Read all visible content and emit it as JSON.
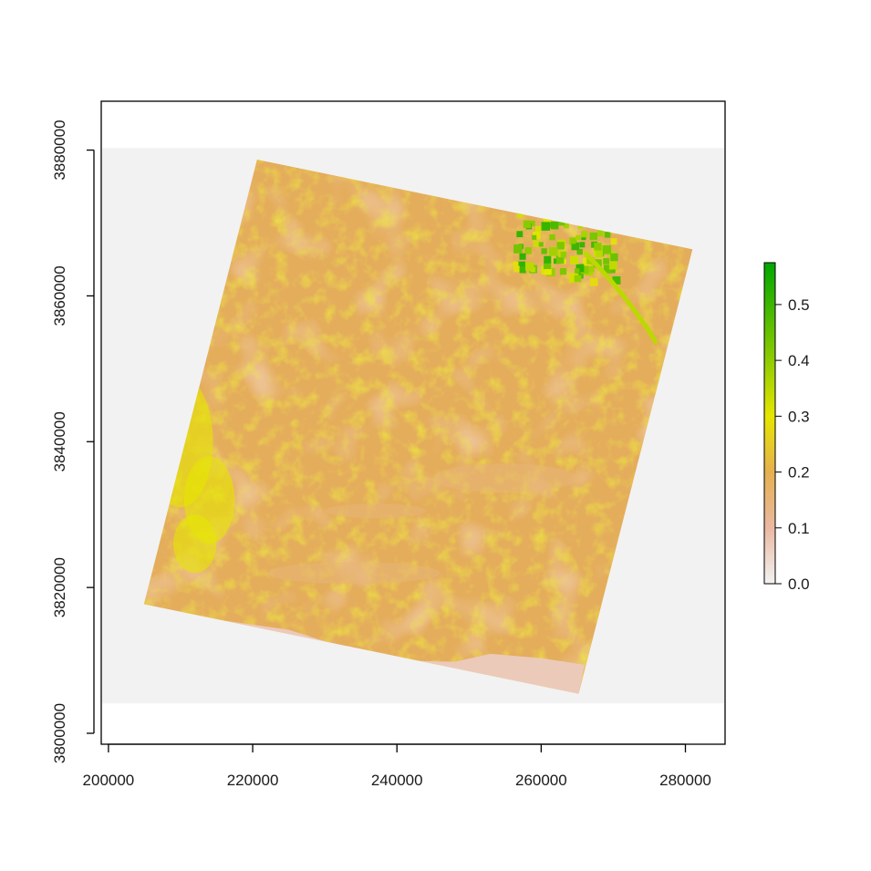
{
  "chart_data": {
    "type": "heatmap",
    "title": "",
    "xlabel": "",
    "ylabel": "",
    "xlim": [
      199000,
      285500
    ],
    "ylim": [
      3798500,
      3886700
    ],
    "x_ticks": [
      200000,
      220000,
      240000,
      260000,
      280000
    ],
    "y_ticks": [
      3800000,
      3820000,
      3840000,
      3860000,
      3880000
    ],
    "x_tick_labels": [
      "200000",
      "220000",
      "240000",
      "260000",
      "280000"
    ],
    "y_tick_labels": [
      "3800000",
      "3820000",
      "3840000",
      "3860000",
      "3880000"
    ],
    "raster_extent": {
      "xmin": 199000,
      "xmax": 285500,
      "ymin": 3804100,
      "ymax": 3880300
    },
    "scene_corners": [
      [
        220600,
        3878700
      ],
      [
        281000,
        3866400
      ],
      [
        265200,
        3805400
      ],
      [
        204900,
        3817700
      ]
    ],
    "na_color": "#f2f2f2",
    "grid": false,
    "legend": {
      "position": "right",
      "ticks": [
        0.0,
        0.1,
        0.2,
        0.3,
        0.4,
        0.5
      ],
      "tick_labels": [
        "0.0",
        "0.1",
        "0.2",
        "0.3",
        "0.4",
        "0.5"
      ],
      "range": [
        0.0,
        0.575
      ],
      "color_stops": [
        {
          "value": 0.0,
          "color": "#f2f2f2"
        },
        {
          "value": 0.1,
          "color": "#eab9a2"
        },
        {
          "value": 0.2,
          "color": "#e6b04f"
        },
        {
          "value": 0.3,
          "color": "#e6e600"
        },
        {
          "value": 0.4,
          "color": "#8fcc00"
        },
        {
          "value": 0.575,
          "color": "#00a600"
        }
      ]
    },
    "value_regions": [
      {
        "label": "background",
        "value": 0.2
      },
      {
        "label": "coastal strip",
        "value": 0.07
      },
      {
        "label": "north-east field cluster",
        "value": 0.5
      },
      {
        "label": "west vegetation band",
        "value": 0.3
      },
      {
        "label": "central basin",
        "value": 0.15
      }
    ]
  }
}
